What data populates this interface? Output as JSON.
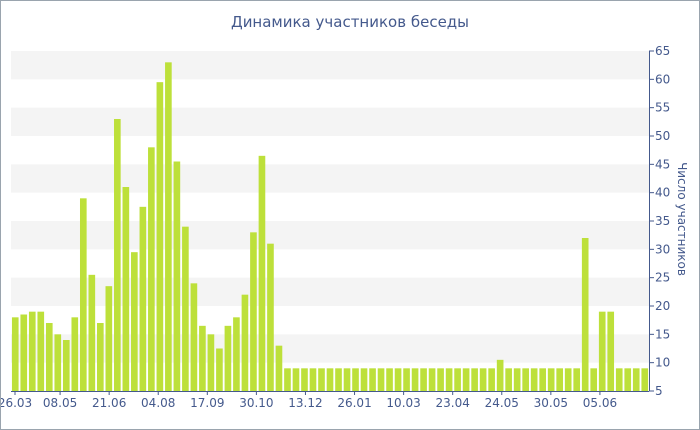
{
  "chart_data": {
    "type": "bar",
    "title": "Динамика участников беседы",
    "ylabel": "Число участников",
    "xlabel": "",
    "ylim": [
      5,
      65
    ],
    "yticks": [
      5,
      10,
      15,
      20,
      25,
      30,
      35,
      40,
      45,
      50,
      55,
      60,
      65
    ],
    "x_tick_labels": [
      "26.03",
      "08.05",
      "21.06",
      "04.08",
      "17.09",
      "30.10",
      "13.12",
      "26.01",
      "10.03",
      "23.04",
      "24.05",
      "30.05",
      "05.06"
    ],
    "grid": "alternating horizontal bands",
    "bar_color": "#bde03a",
    "band_color": "#f4f4f4",
    "axis_color": "#44598c",
    "values": [
      18,
      18.5,
      19,
      19,
      17,
      15,
      14,
      18,
      39,
      25.5,
      17,
      23.5,
      53,
      41,
      29.5,
      37.5,
      48,
      59.5,
      63,
      45.5,
      34,
      24,
      16.5,
      15,
      12.5,
      16.5,
      18,
      22,
      33,
      46.5,
      31,
      13,
      9,
      9,
      9,
      9,
      9,
      9,
      9,
      9,
      9,
      9,
      9,
      9,
      9,
      9,
      9,
      9,
      9,
      9,
      9,
      9,
      9,
      9,
      9,
      9,
      9,
      10.5,
      9,
      9,
      9,
      9,
      9,
      9,
      9,
      9,
      9,
      32,
      9,
      19,
      19,
      9,
      9,
      9,
      9
    ]
  }
}
